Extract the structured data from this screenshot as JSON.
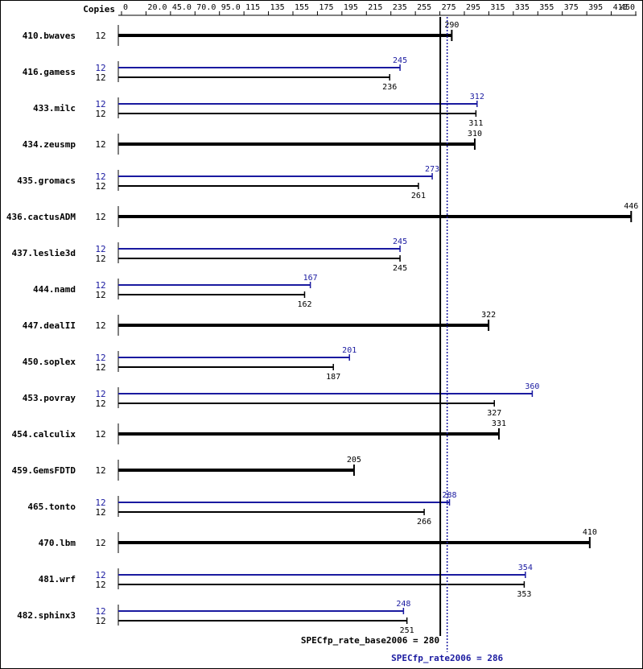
{
  "chart_data": {
    "type": "bar",
    "header": {
      "copies_label": "Copies"
    },
    "x_ticks": [
      "0",
      "20.0",
      "45.0",
      "70.0",
      "95.0",
      "115",
      "135",
      "155",
      "175",
      "195",
      "215",
      "235",
      "255",
      "275",
      "295",
      "315",
      "335",
      "355",
      "375",
      "395",
      "415",
      "450"
    ],
    "xlim": [
      0,
      450
    ],
    "colors": {
      "base": "#000000",
      "peak": "#1a1aa0"
    },
    "benchmarks": [
      {
        "name": "410.bwaves",
        "base_copies": "12",
        "base": 290,
        "base_label": "290"
      },
      {
        "name": "416.gamess",
        "peak_copies": "12",
        "peak": 245,
        "peak_label": "245",
        "base_copies": "12",
        "base": 236,
        "base_label": "236"
      },
      {
        "name": "433.milc",
        "peak_copies": "12",
        "peak": 312,
        "peak_label": "312",
        "base_copies": "12",
        "base": 311,
        "base_label": "311"
      },
      {
        "name": "434.zeusmp",
        "base_copies": "12",
        "base": 310,
        "base_label": "310"
      },
      {
        "name": "435.gromacs",
        "peak_copies": "12",
        "peak": 273,
        "peak_label": "273",
        "base_copies": "12",
        "base": 261,
        "base_label": "261"
      },
      {
        "name": "436.cactusADM",
        "base_copies": "12",
        "base": 446,
        "base_label": "446"
      },
      {
        "name": "437.leslie3d",
        "peak_copies": "12",
        "peak": 245,
        "peak_label": "245",
        "base_copies": "12",
        "base": 245,
        "base_label": "245"
      },
      {
        "name": "444.namd",
        "peak_copies": "12",
        "peak": 167,
        "peak_label": "167",
        "base_copies": "12",
        "base": 162,
        "base_label": "162"
      },
      {
        "name": "447.dealII",
        "base_copies": "12",
        "base": 322,
        "base_label": "322"
      },
      {
        "name": "450.soplex",
        "peak_copies": "12",
        "peak": 201,
        "peak_label": "201",
        "base_copies": "12",
        "base": 187,
        "base_label": "187"
      },
      {
        "name": "453.povray",
        "peak_copies": "12",
        "peak": 360,
        "peak_label": "360",
        "base_copies": "12",
        "base": 327,
        "base_label": "327"
      },
      {
        "name": "454.calculix",
        "base_copies": "12",
        "base": 331,
        "base_label": "331"
      },
      {
        "name": "459.GemsFDTD",
        "base_copies": "12",
        "base": 205,
        "base_label": "205"
      },
      {
        "name": "465.tonto",
        "peak_copies": "12",
        "peak": 288,
        "peak_label": "288",
        "base_copies": "12",
        "base": 266,
        "base_label": "266"
      },
      {
        "name": "470.lbm",
        "base_copies": "12",
        "base": 410,
        "base_label": "410"
      },
      {
        "name": "481.wrf",
        "peak_copies": "12",
        "peak": 354,
        "peak_label": "354",
        "base_copies": "12",
        "base": 353,
        "base_label": "353"
      },
      {
        "name": "482.sphinx3",
        "peak_copies": "12",
        "peak": 248,
        "peak_label": "248",
        "base_copies": "12",
        "base": 251,
        "base_label": "251"
      }
    ],
    "summary": {
      "base_value": 280,
      "peak_value": 286,
      "base_text": "SPECfp_rate_base2006 = 280",
      "peak_text": "SPECfp_rate2006 = 286"
    }
  }
}
